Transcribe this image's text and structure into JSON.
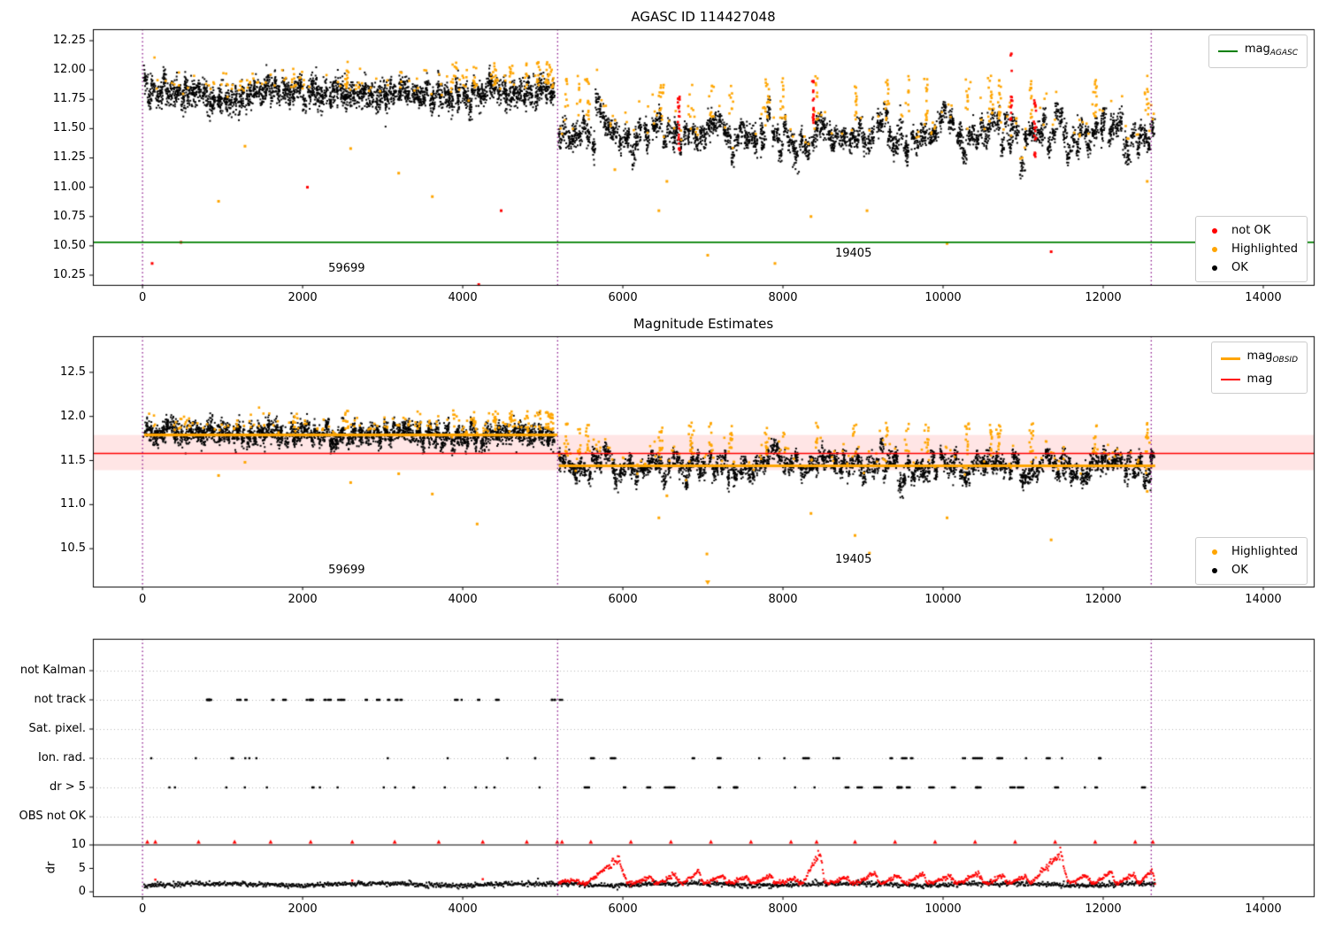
{
  "colors": {
    "ok": "#000000",
    "highlighted": "#ffa500",
    "not_ok": "#ff0000",
    "vline": "#800080",
    "grid": "#b8b8b8",
    "mag_agasc": "#008000",
    "mag": "#ff0000",
    "mag_obsid": "#ffa500",
    "band": "rgba(255,0,0,0.10)"
  },
  "chart_data": [
    {
      "type": "scatter",
      "title": "AGASC ID 114427048",
      "xlim": [
        -620,
        14630
      ],
      "ylim": [
        10.167,
        12.348
      ],
      "xticks": [
        0,
        2000,
        4000,
        6000,
        8000,
        10000,
        12000,
        14000
      ],
      "xticklabels": [
        "0",
        "2000",
        "4000",
        "6000",
        "8000",
        "10000",
        "12000",
        "14000"
      ],
      "yticks": [
        10.25,
        10.5,
        10.75,
        11.0,
        11.25,
        11.5,
        11.75,
        12.0,
        12.25
      ],
      "yticklabels": [
        "10.25",
        "10.50",
        "10.75",
        "11.00",
        "11.25",
        "11.50",
        "11.75",
        "12.00",
        "12.25"
      ],
      "mag_agasc_line": {
        "y": 10.53
      },
      "vlines": [
        0,
        5185,
        12600
      ],
      "annotations": [
        {
          "text": "59699",
          "x": 2550,
          "y": 10.305
        },
        {
          "text": "19405",
          "x": 8880,
          "y": 10.43
        }
      ],
      "legend_top": [
        {
          "label_main": "mag",
          "label_sub": "AGASC",
          "swatch": "line",
          "color": "#008000"
        }
      ],
      "legend_bottom": [
        {
          "label_main": "not OK",
          "swatch": "dot",
          "color": "#ff0000"
        },
        {
          "label_main": "Highlighted",
          "swatch": "dot",
          "color": "#ffa500"
        },
        {
          "label_main": "OK",
          "swatch": "dot",
          "color": "#000000"
        }
      ],
      "series": {
        "seed": 7,
        "segments": [
          {
            "x0": 25,
            "x1": 5150,
            "mean": 11.8,
            "cluster_step": 45,
            "cluster_sd": 0.045,
            "point_sd": 0.055,
            "per_cluster": 26,
            "orange_frac": 0.045,
            "wave_amp": 0.02,
            "wave_len": 1400
          },
          {
            "x0": 5200,
            "x1": 12650,
            "mean": 11.45,
            "cluster_step": 50,
            "cluster_sd": 0.075,
            "point_sd": 0.05,
            "per_cluster": 24,
            "orange_frac": 0.035,
            "wave_amp": 0.06,
            "wave_len": 700
          }
        ],
        "rise_a": [
          0.05,
          0.27
        ],
        "rise_b": [
          0.12,
          0.5
        ],
        "orange_bursts": {
          "xs": [
            1900,
            2550,
            3900,
            4150,
            4400,
            4600,
            4800,
            4950,
            5060,
            5120,
            5300,
            5450,
            5560,
            6480,
            6850,
            7100,
            7350,
            7800,
            8000,
            8420,
            8900,
            9300,
            9550,
            9800,
            10300,
            10600,
            10700,
            11100,
            11900,
            12550
          ],
          "n": [
            6,
            16
          ]
        },
        "red_streaks": [
          {
            "x": 6700,
            "y0": 11.3,
            "y1": 11.8,
            "n": 22
          },
          {
            "x": 8380,
            "y0": 11.45,
            "y1": 11.92,
            "n": 18
          },
          {
            "x": 10850,
            "y0": 11.55,
            "y1": 12.2,
            "n": 16
          },
          {
            "x": 11150,
            "y0": 11.25,
            "y1": 11.75,
            "n": 20
          }
        ],
        "outliers": [
          {
            "x": 120,
            "y": 10.35,
            "color": "red"
          },
          {
            "x": 480,
            "y": 10.53,
            "color": "red"
          },
          {
            "x": 950,
            "y": 10.88,
            "color": "orange"
          },
          {
            "x": 1280,
            "y": 11.35,
            "color": "orange"
          },
          {
            "x": 2060,
            "y": 11.0,
            "color": "red"
          },
          {
            "x": 2600,
            "y": 11.33,
            "color": "orange"
          },
          {
            "x": 3200,
            "y": 11.12,
            "color": "orange"
          },
          {
            "x": 3620,
            "y": 10.92,
            "color": "orange"
          },
          {
            "x": 4200,
            "y": 10.17,
            "color": "red"
          },
          {
            "x": 4480,
            "y": 10.8,
            "color": "red"
          },
          {
            "x": 5900,
            "y": 11.15,
            "color": "orange"
          },
          {
            "x": 6450,
            "y": 10.8,
            "color": "orange"
          },
          {
            "x": 6550,
            "y": 11.05,
            "color": "orange"
          },
          {
            "x": 7060,
            "y": 10.42,
            "color": "orange"
          },
          {
            "x": 7900,
            "y": 10.35,
            "color": "orange"
          },
          {
            "x": 8350,
            "y": 10.75,
            "color": "orange"
          },
          {
            "x": 9050,
            "y": 10.8,
            "color": "orange"
          },
          {
            "x": 10050,
            "y": 10.52,
            "color": "orange"
          },
          {
            "x": 11350,
            "y": 10.45,
            "color": "red"
          },
          {
            "x": 12550,
            "y": 11.05,
            "color": "orange"
          }
        ]
      }
    },
    {
      "type": "scatter",
      "title": "Magnitude Estimates",
      "xlim": [
        -620,
        14630
      ],
      "ylim": [
        10.07,
        12.91
      ],
      "xticks": [
        0,
        2000,
        4000,
        6000,
        8000,
        10000,
        12000,
        14000
      ],
      "xticklabels": [
        "0",
        "2000",
        "4000",
        "6000",
        "8000",
        "10000",
        "12000",
        "14000"
      ],
      "yticks": [
        10.5,
        11.0,
        11.5,
        12.0,
        12.5
      ],
      "yticklabels": [
        "10.5",
        "11.0",
        "11.5",
        "12.0",
        "12.5"
      ],
      "mag_line": {
        "y": 11.58
      },
      "mag_band": {
        "y0": 11.39,
        "y1": 11.79
      },
      "obsid_lines": [
        {
          "x0": 20,
          "x1": 5185,
          "y": 11.79
        },
        {
          "x0": 5200,
          "x1": 12650,
          "y": 11.44
        }
      ],
      "vlines": [
        0,
        5185,
        12600
      ],
      "annotations": [
        {
          "text": "59699",
          "x": 2550,
          "y": 10.25
        },
        {
          "text": "19405",
          "x": 8880,
          "y": 10.37
        }
      ],
      "legend_top": [
        {
          "label_main": "mag",
          "label_sub": "OBSID",
          "swatch": "thickline",
          "color": "#ffa500"
        },
        {
          "label_main": "mag",
          "swatch": "line",
          "color": "#ff0000"
        }
      ],
      "legend_bottom": [
        {
          "label_main": "Highlighted",
          "swatch": "dot",
          "color": "#ffa500"
        },
        {
          "label_main": "OK",
          "swatch": "dot",
          "color": "#000000"
        }
      ],
      "series": {
        "seed": 13,
        "segments": [
          {
            "x0": 25,
            "x1": 5150,
            "mean": 11.8,
            "cluster_step": 45,
            "cluster_sd": 0.045,
            "point_sd": 0.06,
            "per_cluster": 26,
            "orange_frac": 0.05,
            "wave_amp": 0.02,
            "wave_len": 1400
          },
          {
            "x0": 5200,
            "x1": 12650,
            "mean": 11.45,
            "cluster_step": 50,
            "cluster_sd": 0.075,
            "point_sd": 0.055,
            "per_cluster": 24,
            "orange_frac": 0.04,
            "wave_amp": 0.06,
            "wave_len": 700
          }
        ],
        "rise_a": [
          0.05,
          0.27
        ],
        "rise_b": [
          0.12,
          0.48
        ],
        "orange_bursts": {
          "xs": [
            1900,
            2550,
            3900,
            4150,
            4400,
            4600,
            4800,
            4950,
            5060,
            5120,
            5300,
            5450,
            5560,
            6480,
            6850,
            7100,
            7350,
            7800,
            8000,
            8420,
            8900,
            9300,
            9550,
            9800,
            10300,
            10600,
            10700,
            11100,
            11900,
            12550
          ],
          "n": [
            6,
            16
          ]
        },
        "red_streaks": [],
        "outliers": [
          {
            "x": 950,
            "y": 11.33,
            "color": "orange"
          },
          {
            "x": 1280,
            "y": 11.48,
            "color": "orange"
          },
          {
            "x": 2600,
            "y": 11.25,
            "color": "orange"
          },
          {
            "x": 3200,
            "y": 11.35,
            "color": "orange"
          },
          {
            "x": 3620,
            "y": 11.12,
            "color": "orange"
          },
          {
            "x": 4180,
            "y": 10.78,
            "color": "orange"
          },
          {
            "x": 6450,
            "y": 10.85,
            "color": "orange"
          },
          {
            "x": 6550,
            "y": 11.1,
            "color": "orange"
          },
          {
            "x": 7050,
            "y": 10.44,
            "color": "orange"
          },
          {
            "x": 7060,
            "y": 10.12,
            "color": "orange",
            "marker": "v"
          },
          {
            "x": 8350,
            "y": 10.9,
            "color": "orange"
          },
          {
            "x": 8900,
            "y": 10.65,
            "color": "orange"
          },
          {
            "x": 9080,
            "y": 10.45,
            "color": "orange"
          },
          {
            "x": 10050,
            "y": 10.85,
            "color": "orange"
          },
          {
            "x": 11350,
            "y": 10.6,
            "color": "orange"
          },
          {
            "x": 12550,
            "y": 11.15,
            "color": "orange"
          }
        ]
      }
    },
    {
      "type": "flags",
      "xlim": [
        -620,
        14630
      ],
      "xticks": [
        0,
        2000,
        4000,
        6000,
        8000,
        10000,
        12000,
        14000
      ],
      "xticklabels": [
        "0",
        "2000",
        "4000",
        "6000",
        "8000",
        "10000",
        "12000",
        "14000"
      ],
      "rows": [
        "not Kalman",
        "not track",
        "Sat. pixel.",
        "Ion. rad.",
        "dr > 5",
        "OBS not OK"
      ],
      "dr_ylabel": "dr",
      "dr_yticks": [
        10,
        5,
        0
      ],
      "dr_yticklabels": [
        "10",
        "5",
        "0"
      ],
      "dr_hline": 10,
      "vlines": [
        0,
        5185,
        12600
      ],
      "flags": {
        "not_track": {
          "clusters": 26,
          "span": [
            380,
            4760
          ],
          "extra_span": [
            5110,
            5265
          ],
          "extra_n": 6
        },
        "ion_rad": {
          "singles_a": 12,
          "span_a": [
            60,
            5050
          ],
          "clusters_b": 24,
          "span_b": [
            5210,
            12620
          ]
        },
        "dr_gt5": {
          "singles_a": 18,
          "span_a": [
            40,
            5150
          ],
          "clusters_b": 30,
          "span_b": [
            5210,
            12650
          ]
        }
      },
      "dr_series": {
        "range": [
          20,
          12650
        ],
        "step": 8,
        "black_base": 1.3,
        "red_base": 1.9,
        "red_range": [
          5200,
          12650
        ],
        "events": [
          [
            5200,
            5450,
            2.8
          ],
          [
            5550,
            6050,
            7.2
          ],
          [
            6150,
            6400,
            3.2
          ],
          [
            6450,
            6700,
            4.0
          ],
          [
            6750,
            7000,
            4.4
          ],
          [
            7050,
            7300,
            3.6
          ],
          [
            7350,
            7600,
            3.2
          ],
          [
            7650,
            7900,
            3.6
          ],
          [
            7950,
            8200,
            3.0
          ],
          [
            8250,
            8520,
            8.8
          ],
          [
            8600,
            8850,
            3.2
          ],
          [
            8950,
            9200,
            4.2
          ],
          [
            9250,
            9500,
            3.6
          ],
          [
            9550,
            9800,
            4.0
          ],
          [
            9850,
            10150,
            3.4
          ],
          [
            10200,
            10500,
            4.0
          ],
          [
            10550,
            10800,
            3.6
          ],
          [
            10850,
            11080,
            3.4
          ],
          [
            11100,
            11560,
            8.3
          ],
          [
            11600,
            11850,
            3.8
          ],
          [
            11900,
            12150,
            4.4
          ],
          [
            12200,
            12430,
            4.0
          ],
          [
            12450,
            12650,
            4.6
          ]
        ],
        "red_singles_a": [
          [
            160,
            2.6
          ],
          [
            2620,
            2.4
          ],
          [
            4250,
            2.7
          ]
        ],
        "capped_xs": [
          60,
          160,
          700,
          1150,
          1600,
          2100,
          2620,
          3150,
          3700,
          4250,
          4800,
          5180,
          5240,
          5600,
          6100,
          6600,
          7100,
          7600,
          8100,
          8420,
          8900,
          9400,
          9900,
          10400,
          10900,
          11400,
          11900,
          12400,
          12620
        ]
      }
    }
  ]
}
